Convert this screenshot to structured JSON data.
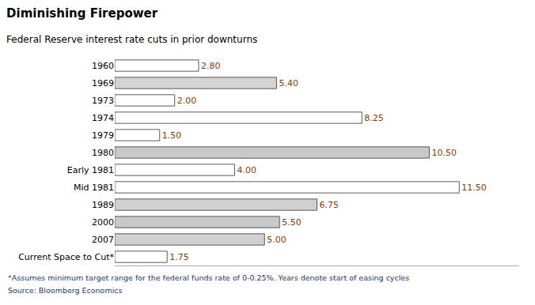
{
  "chart_data": {
    "type": "bar",
    "orientation": "horizontal",
    "title": "Diminishing Firepower",
    "subtitle": "Federal Reserve interest rate cuts in prior downturns",
    "annotations": [
      "*Assumes minimum target range for the federal funds rate of 0-0.25%. Years denote start of easing cycles",
      "Source: Bloomberg Economics"
    ],
    "categories": [
      "1960",
      "1969",
      "1973",
      "1974",
      "1979",
      "1980",
      "Early 1981",
      "Mid 1981",
      "1989",
      "2000",
      "2007",
      "Current Space to Cut*"
    ],
    "values": [
      2.8,
      5.4,
      2.0,
      8.25,
      1.5,
      10.5,
      4.0,
      11.5,
      6.75,
      5.5,
      5.0,
      1.75
    ],
    "value_labels": [
      "2.80",
      "5.40",
      "2.00",
      "8.25",
      "1.50",
      "10.50",
      "4.00",
      "11.50",
      "6.75",
      "5.50",
      "5.00",
      "1.75"
    ],
    "data_labels": true,
    "colors": [
      "#ffffff",
      "#d4d4d4",
      "#ffffff",
      "#ffffff",
      "#ffffff",
      "#c8c8c8",
      "#ffffff",
      "#ffffff",
      "#d0d0d0",
      "#c8c8c8",
      "#d0d0d0",
      "#ffffff"
    ],
    "xlim": [
      0,
      13.5
    ],
    "tick_labels": "y",
    "grid": false
  }
}
